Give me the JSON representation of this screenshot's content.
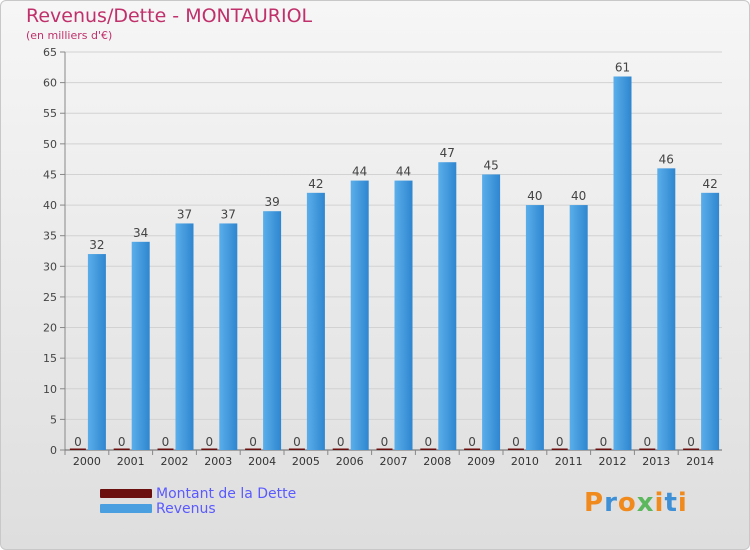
{
  "chart_data": {
    "type": "bar",
    "title": "Revenus/Dette - MONTAURIOL",
    "subtitle": "(en milliers d'€)",
    "xlabel": "",
    "ylabel": "",
    "ylim": [
      0,
      65
    ],
    "yticks": [
      0,
      5,
      10,
      15,
      20,
      25,
      30,
      35,
      40,
      45,
      50,
      55,
      60,
      65
    ],
    "grid": true,
    "legend_position": "bottom-left",
    "categories": [
      "2000",
      "2001",
      "2002",
      "2003",
      "2004",
      "2005",
      "2006",
      "2007",
      "2008",
      "2009",
      "2010",
      "2011",
      "2012",
      "2013",
      "2014"
    ],
    "series": [
      {
        "name": "Montant de la Dette",
        "color": "#6b0f0f",
        "values": [
          0,
          0,
          0,
          0,
          0,
          0,
          0,
          0,
          0,
          0,
          0,
          0,
          0,
          0,
          0
        ]
      },
      {
        "name": "Revenus",
        "color": "#4a9fe0",
        "values": [
          32,
          34,
          37,
          37,
          39,
          42,
          44,
          44,
          47,
          45,
          40,
          40,
          61,
          46,
          42
        ]
      }
    ]
  },
  "brand": {
    "letters": [
      "P",
      "r",
      "o",
      "x",
      "i",
      "t",
      "i"
    ],
    "colors": [
      "#f08a1c",
      "#3d8fd6",
      "#f08a1c",
      "#5cb85c",
      "#f08a1c",
      "#3d8fd6",
      "#f08a1c"
    ]
  }
}
